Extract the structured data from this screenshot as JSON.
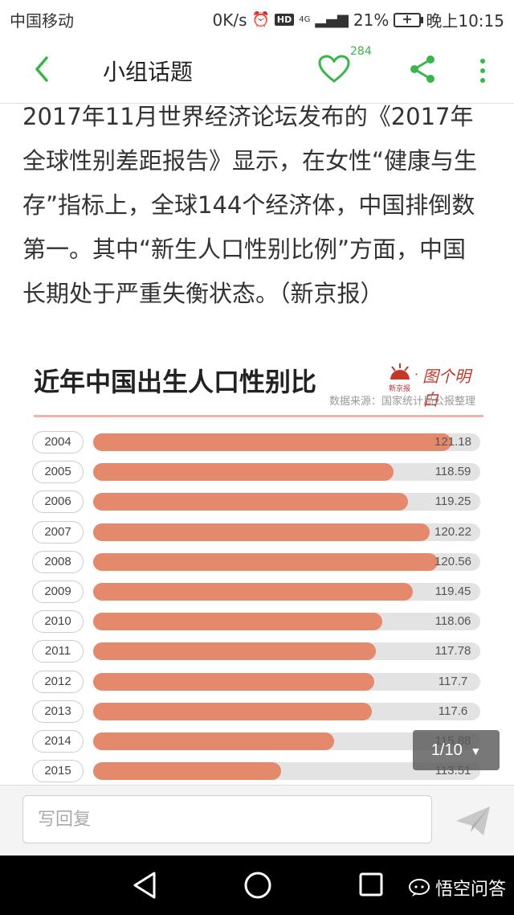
{
  "status_bar": {
    "carrier": "中国移动",
    "speed": "0K/s",
    "hd": "HD",
    "network": "4G",
    "battery": "21%",
    "time": "晚上10:15"
  },
  "header": {
    "title": "小组话题",
    "like_count": "284"
  },
  "article": {
    "lines": [
      "2017年11月世界经济论坛发布的《2017年",
      "全球性别差距报告》显示，在女性“健康与生",
      "存”指标上，全球144个经济体，中国排倒数",
      "第一。其中“新生人口性别比例”方面，中国",
      "长期处于严重失衡状态。（新京报）"
    ]
  },
  "infographic": {
    "title": "近年中国出生人口性别比",
    "logo_small": "新京报",
    "logo_dot": "·",
    "logo_script": "图个明白",
    "source": "数据来源：国家统计局公报整理",
    "colors": {
      "bar": "#e4896c",
      "track": "#e3e3e3"
    }
  },
  "chart_data": {
    "type": "bar",
    "title": "近年中国出生人口性别比",
    "categories": [
      "2004",
      "2005",
      "2006",
      "2007",
      "2008",
      "2009",
      "2010",
      "2011",
      "2012",
      "2013",
      "2014",
      "2015"
    ],
    "values": [
      121.18,
      118.59,
      119.25,
      120.22,
      120.56,
      119.45,
      118.06,
      117.78,
      117.7,
      117.6,
      115.88,
      113.51
    ],
    "value_labels": [
      "121.18",
      "118.59",
      "119.25",
      "120.22",
      "120.56",
      "119.45",
      "118.06",
      "117.78",
      "117.7",
      "117.6",
      "115.88",
      "113.51"
    ],
    "orientation": "horizontal"
  },
  "pager": {
    "label": "1/10",
    "arrow": "▼"
  },
  "reply": {
    "placeholder": "写回复"
  },
  "watermark": {
    "text": "悟空问答"
  }
}
